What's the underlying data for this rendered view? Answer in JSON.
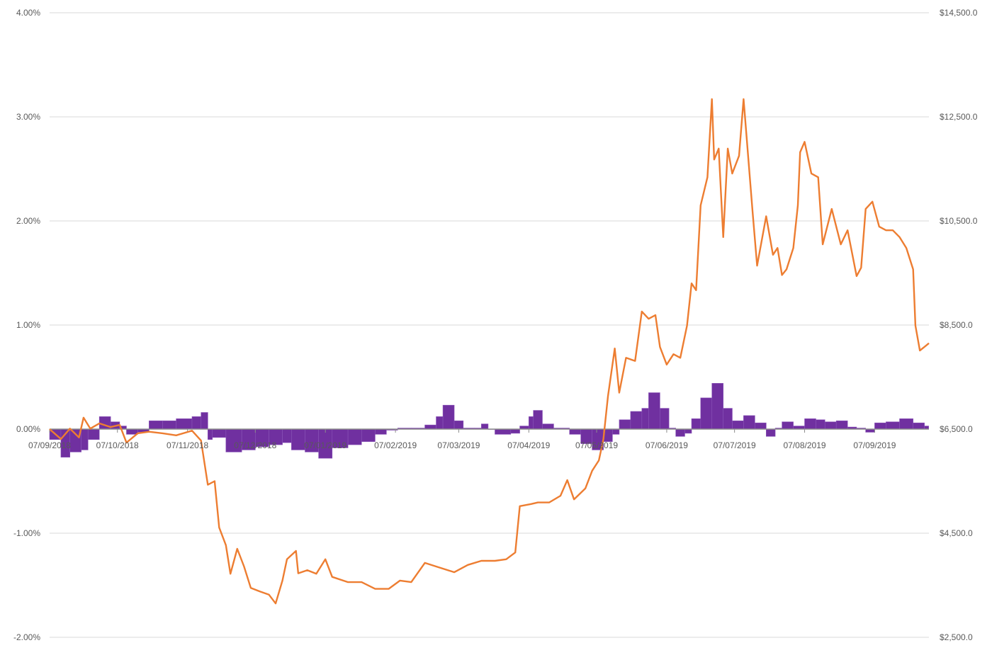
{
  "chart_data": {
    "type": "bar+line",
    "title": "",
    "grid": true,
    "legend": "none",
    "xlim": [
      "07/09/2018",
      "01/10/2019"
    ],
    "x_tick_labels": [
      "07/09/2018",
      "07/10/2018",
      "07/11/2018",
      "07/12/2018",
      "07/01/2019",
      "07/02/2019",
      "07/03/2019",
      "07/04/2019",
      "07/05/2019",
      "07/06/2019",
      "07/07/2019",
      "07/08/2019",
      "07/09/2019"
    ],
    "y_left": {
      "range": [
        -0.02,
        0.04
      ],
      "step": 0.01,
      "tick_labels": [
        "-2.00%",
        "-1.00%",
        "0.00%",
        "1.00%",
        "2.00%",
        "3.00%",
        "4.00%"
      ]
    },
    "y_right": {
      "range": [
        2500,
        14500
      ],
      "step": 2000,
      "tick_labels": [
        "$2,500.0",
        "$4,500.0",
        "$6,500.0",
        "$8,500.0",
        "$10,500.0",
        "$12,500.0",
        "$14,500.0"
      ]
    },
    "colors": {
      "bars": "#7030a0",
      "line": "#ed7d31",
      "grid": "#d9d9d9",
      "axis": "#8c8c8c"
    },
    "series": [
      {
        "type": "bar",
        "axis": "left",
        "points": [
          [
            "07/09/2018",
            -0.001
          ],
          [
            "12/09/2018",
            -0.0027
          ],
          [
            "16/09/2018",
            -0.0022
          ],
          [
            "21/09/2018",
            -0.002
          ],
          [
            "24/09/2018",
            -0.001
          ],
          [
            "29/09/2018",
            0.0012
          ],
          [
            "04/10/2018",
            0.0007
          ],
          [
            "08/10/2018",
            0.0003
          ],
          [
            "11/10/2018",
            -0.0005
          ],
          [
            "16/10/2018",
            -0.0003
          ],
          [
            "21/10/2018",
            0.0008
          ],
          [
            "27/10/2018",
            0.0008
          ],
          [
            "02/11/2018",
            0.001
          ],
          [
            "09/11/2018",
            0.0012
          ],
          [
            "13/11/2018",
            0.0016
          ],
          [
            "16/11/2018",
            -0.001
          ],
          [
            "18/11/2018",
            -0.0008
          ],
          [
            "24/11/2018",
            -0.0022
          ],
          [
            "01/12/2018",
            -0.002
          ],
          [
            "07/12/2018",
            -0.0017
          ],
          [
            "13/12/2018",
            -0.0015
          ],
          [
            "19/12/2018",
            -0.0013
          ],
          [
            "23/12/2018",
            -0.002
          ],
          [
            "29/12/2018",
            -0.0022
          ],
          [
            "04/01/2019",
            -0.0028
          ],
          [
            "10/01/2019",
            -0.0018
          ],
          [
            "17/01/2019",
            -0.0015
          ],
          [
            "23/01/2019",
            -0.0012
          ],
          [
            "29/01/2019",
            -0.0005
          ],
          [
            "03/02/2019",
            -0.0001
          ],
          [
            "08/02/2019",
            0.0001
          ],
          [
            "14/02/2019",
            0.0001
          ],
          [
            "20/02/2019",
            0.0004
          ],
          [
            "25/02/2019",
            0.0012
          ],
          [
            "28/02/2019",
            0.0023
          ],
          [
            "05/03/2019",
            0.0008
          ],
          [
            "09/03/2019",
            0.0001
          ],
          [
            "14/03/2019",
            0.0001
          ],
          [
            "17/03/2019",
            0.0005
          ],
          [
            "20/03/2019",
            0.0
          ],
          [
            "23/03/2019",
            -0.0005
          ],
          [
            "30/03/2019",
            -0.0004
          ],
          [
            "03/04/2019",
            0.0003
          ],
          [
            "07/04/2019",
            0.0012
          ],
          [
            "09/04/2019",
            0.0018
          ],
          [
            "13/04/2019",
            0.0005
          ],
          [
            "18/04/2019",
            0.0001
          ],
          [
            "22/04/2019",
            0.0001
          ],
          [
            "25/04/2019",
            -0.0005
          ],
          [
            "30/04/2019",
            -0.0014
          ],
          [
            "05/05/2019",
            -0.002
          ],
          [
            "10/05/2019",
            -0.0012
          ],
          [
            "14/05/2019",
            -0.0005
          ],
          [
            "17/05/2019",
            0.0009
          ],
          [
            "22/05/2019",
            0.0017
          ],
          [
            "27/05/2019",
            0.002
          ],
          [
            "30/05/2019",
            0.0035
          ],
          [
            "04/06/2019",
            0.002
          ],
          [
            "08/06/2019",
            0.0001
          ],
          [
            "11/06/2019",
            -0.0007
          ],
          [
            "15/06/2019",
            -0.0004
          ],
          [
            "18/06/2019",
            0.001
          ],
          [
            "22/06/2019",
            0.003
          ],
          [
            "27/06/2019",
            0.0044
          ],
          [
            "02/07/2019",
            0.002
          ],
          [
            "06/07/2019",
            0.0008
          ],
          [
            "11/07/2019",
            0.0013
          ],
          [
            "16/07/2019",
            0.0006
          ],
          [
            "21/07/2019",
            -0.0007
          ],
          [
            "25/07/2019",
            0.0001
          ],
          [
            "28/07/2019",
            0.0007
          ],
          [
            "02/08/2019",
            0.0003
          ],
          [
            "07/08/2019",
            0.001
          ],
          [
            "12/08/2019",
            0.0009
          ],
          [
            "16/08/2019",
            0.0007
          ],
          [
            "21/08/2019",
            0.0008
          ],
          [
            "26/08/2019",
            0.0002
          ],
          [
            "30/08/2019",
            0.0001
          ],
          [
            "03/09/2019",
            -0.0003
          ],
          [
            "07/09/2019",
            0.0006
          ],
          [
            "12/09/2019",
            0.0007
          ],
          [
            "18/09/2019",
            0.001
          ],
          [
            "24/09/2019",
            0.0006
          ],
          [
            "29/09/2019",
            0.0003
          ]
        ]
      },
      {
        "type": "line",
        "axis": "right",
        "points": [
          [
            "07/09/2018",
            6500
          ],
          [
            "12/09/2018",
            6310
          ],
          [
            "16/09/2018",
            6510
          ],
          [
            "20/09/2018",
            6340
          ],
          [
            "22/09/2018",
            6720
          ],
          [
            "25/09/2018",
            6510
          ],
          [
            "29/09/2018",
            6610
          ],
          [
            "04/10/2018",
            6540
          ],
          [
            "08/10/2018",
            6580
          ],
          [
            "11/10/2018",
            6240
          ],
          [
            "16/10/2018",
            6420
          ],
          [
            "21/10/2018",
            6450
          ],
          [
            "27/10/2018",
            6420
          ],
          [
            "02/11/2018",
            6380
          ],
          [
            "09/11/2018",
            6470
          ],
          [
            "13/11/2018",
            6280
          ],
          [
            "16/11/2018",
            5430
          ],
          [
            "19/11/2018",
            5500
          ],
          [
            "21/11/2018",
            4610
          ],
          [
            "24/11/2018",
            4270
          ],
          [
            "26/11/2018",
            3720
          ],
          [
            "29/11/2018",
            4200
          ],
          [
            "02/12/2018",
            3860
          ],
          [
            "05/12/2018",
            3450
          ],
          [
            "09/12/2018",
            3380
          ],
          [
            "13/12/2018",
            3320
          ],
          [
            "16/12/2018",
            3150
          ],
          [
            "19/12/2018",
            3590
          ],
          [
            "21/12/2018",
            4000
          ],
          [
            "25/12/2018",
            4160
          ],
          [
            "26/12/2018",
            3730
          ],
          [
            "30/12/2018",
            3790
          ],
          [
            "03/01/2019",
            3720
          ],
          [
            "07/01/2019",
            4000
          ],
          [
            "10/01/2019",
            3660
          ],
          [
            "17/01/2019",
            3560
          ],
          [
            "23/01/2019",
            3560
          ],
          [
            "29/01/2019",
            3430
          ],
          [
            "04/02/2019",
            3430
          ],
          [
            "09/02/2019",
            3590
          ],
          [
            "14/02/2019",
            3560
          ],
          [
            "20/02/2019",
            3930
          ],
          [
            "25/02/2019",
            3860
          ],
          [
            "05/03/2019",
            3750
          ],
          [
            "11/03/2019",
            3890
          ],
          [
            "17/03/2019",
            3970
          ],
          [
            "23/03/2019",
            3970
          ],
          [
            "28/03/2019",
            4000
          ],
          [
            "01/04/2019",
            4130
          ],
          [
            "03/04/2019",
            5020
          ],
          [
            "08/04/2019",
            5060
          ],
          [
            "11/04/2019",
            5090
          ],
          [
            "16/04/2019",
            5090
          ],
          [
            "21/04/2019",
            5220
          ],
          [
            "24/04/2019",
            5520
          ],
          [
            "27/04/2019",
            5150
          ],
          [
            "02/05/2019",
            5360
          ],
          [
            "05/05/2019",
            5700
          ],
          [
            "08/05/2019",
            5900
          ],
          [
            "10/05/2019",
            6310
          ],
          [
            "12/05/2019",
            7130
          ],
          [
            "15/05/2019",
            8050
          ],
          [
            "17/05/2019",
            7200
          ],
          [
            "20/05/2019",
            7870
          ],
          [
            "24/05/2019",
            7810
          ],
          [
            "27/05/2019",
            8760
          ],
          [
            "30/05/2019",
            8620
          ],
          [
            "02/06/2019",
            8690
          ],
          [
            "04/06/2019",
            8080
          ],
          [
            "07/06/2019",
            7740
          ],
          [
            "10/06/2019",
            7940
          ],
          [
            "13/06/2019",
            7870
          ],
          [
            "16/06/2019",
            8490
          ],
          [
            "18/06/2019",
            9300
          ],
          [
            "20/06/2019",
            9170
          ],
          [
            "22/06/2019",
            10800
          ],
          [
            "25/06/2019",
            11340
          ],
          [
            "27/06/2019",
            12840
          ],
          [
            "28/06/2019",
            11680
          ],
          [
            "30/06/2019",
            11890
          ],
          [
            "02/07/2019",
            10190
          ],
          [
            "04/07/2019",
            11890
          ],
          [
            "06/07/2019",
            11410
          ],
          [
            "09/07/2019",
            11750
          ],
          [
            "11/07/2019",
            12840
          ],
          [
            "13/07/2019",
            11750
          ],
          [
            "15/07/2019",
            10660
          ],
          [
            "17/07/2019",
            9640
          ],
          [
            "21/07/2019",
            10590
          ],
          [
            "24/07/2019",
            9850
          ],
          [
            "26/07/2019",
            9980
          ],
          [
            "28/07/2019",
            9460
          ],
          [
            "30/07/2019",
            9570
          ],
          [
            "02/08/2019",
            9980
          ],
          [
            "04/08/2019",
            10800
          ],
          [
            "05/08/2019",
            11820
          ],
          [
            "07/08/2019",
            12020
          ],
          [
            "10/08/2019",
            11410
          ],
          [
            "13/08/2019",
            11340
          ],
          [
            "15/08/2019",
            10050
          ],
          [
            "19/08/2019",
            10730
          ],
          [
            "23/08/2019",
            10050
          ],
          [
            "26/08/2019",
            10320
          ],
          [
            "30/08/2019",
            9440
          ],
          [
            "01/09/2019",
            9600
          ],
          [
            "03/09/2019",
            10730
          ],
          [
            "06/09/2019",
            10870
          ],
          [
            "09/09/2019",
            10390
          ],
          [
            "12/09/2019",
            10320
          ],
          [
            "15/09/2019",
            10320
          ],
          [
            "18/09/2019",
            10190
          ],
          [
            "21/09/2019",
            9980
          ],
          [
            "24/09/2019",
            9570
          ],
          [
            "25/09/2019",
            8490
          ],
          [
            "27/09/2019",
            8010
          ],
          [
            "29/09/2019",
            8080
          ],
          [
            "01/10/2019",
            8150
          ]
        ]
      }
    ]
  }
}
